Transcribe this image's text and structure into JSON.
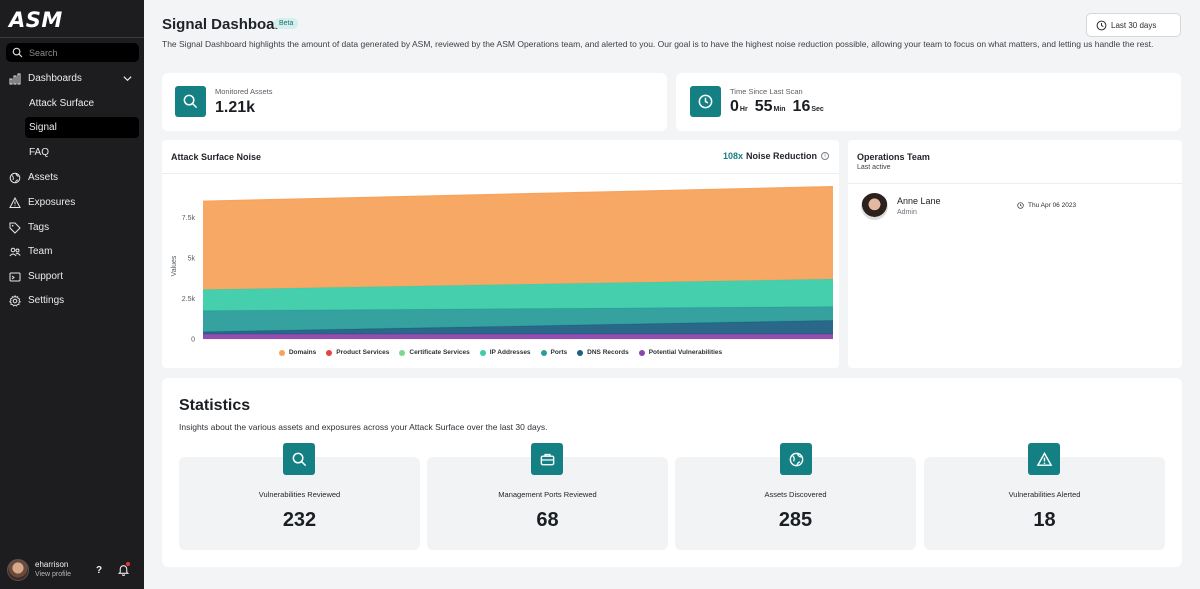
{
  "brand": {
    "logo_text": "ASM"
  },
  "sidebar": {
    "search_placeholder": "Search",
    "items": [
      {
        "label": "Dashboards",
        "icon": "bar-chart-icon"
      },
      {
        "label": "Assets",
        "icon": "globe-icon"
      },
      {
        "label": "Exposures",
        "icon": "warning-icon"
      },
      {
        "label": "Tags",
        "icon": "tag-icon"
      },
      {
        "label": "Team",
        "icon": "team-icon"
      },
      {
        "label": "Support",
        "icon": "support-icon"
      },
      {
        "label": "Settings",
        "icon": "gear-icon"
      }
    ],
    "subitems": [
      {
        "label": "Attack Surface",
        "active": false
      },
      {
        "label": "Signal",
        "active": true
      },
      {
        "label": "FAQ",
        "active": false
      }
    ],
    "profile": {
      "name": "eharrison",
      "link": "View profile"
    },
    "help_label": "?"
  },
  "header": {
    "title": "Signal Dashboard",
    "badge": "Beta",
    "description": "The Signal Dashboard highlights the amount of data generated by ASM, reviewed by the ASM Operations team, and alerted to you. Our goal is to have the highest noise reduction possible, allowing your team to focus on what matters, and letting us handle the rest.",
    "date_range": "Last 30 days"
  },
  "kpis": {
    "monitored_assets": {
      "label": "Monitored Assets",
      "value": "1.21k"
    },
    "last_scan": {
      "label": "Time Since Last Scan",
      "hours": "0",
      "hours_unit": "Hr",
      "minutes": "55",
      "minutes_unit": "Min",
      "seconds": "16",
      "seconds_unit": "Sec"
    }
  },
  "noise_chart": {
    "title": "Attack Surface Noise",
    "reduction_value": "108x",
    "reduction_label": "Noise Reduction"
  },
  "chart_data": {
    "type": "area",
    "stacked": true,
    "ylabel": "Values",
    "xlabel": "",
    "ylim": [
      0,
      9500
    ],
    "yticks": [
      "0",
      "2.5k",
      "5k",
      "7.5k"
    ],
    "ytick_values": [
      0,
      2500,
      5000,
      7500
    ],
    "grid": true,
    "legend_position": "bottom",
    "x": [
      0,
      1
    ],
    "series": [
      {
        "name": "Potential Vulnerabilities",
        "color": "#8e44ad",
        "values": [
          300,
          300
        ]
      },
      {
        "name": "DNS Records",
        "color": "#1f5f82",
        "values": [
          150,
          850
        ]
      },
      {
        "name": "Ports",
        "color": "#2a9d9a",
        "values": [
          1300,
          850
        ]
      },
      {
        "name": "IP Addresses",
        "color": "#3ccca8",
        "values": [
          1300,
          1700
        ]
      },
      {
        "name": "Certificate Services",
        "color": "#7bd88f",
        "values": [
          0,
          0
        ]
      },
      {
        "name": "Product Services",
        "color": "#e04343",
        "values": [
          0,
          0
        ]
      },
      {
        "name": "Domains",
        "color": "#f7a35c",
        "values": [
          5450,
          5700
        ]
      }
    ],
    "legend": [
      {
        "name": "Domains",
        "color": "#f7a35c"
      },
      {
        "name": "Product Services",
        "color": "#e04343"
      },
      {
        "name": "Certificate Services",
        "color": "#7bd88f"
      },
      {
        "name": "IP Addresses",
        "color": "#3ccca8"
      },
      {
        "name": "Ports",
        "color": "#2a9d9a"
      },
      {
        "name": "DNS Records",
        "color": "#1f5f82"
      },
      {
        "name": "Potential Vulnerabilities",
        "color": "#8e44ad"
      }
    ]
  },
  "operations": {
    "title": "Operations Team",
    "subtitle": "Last active",
    "member": {
      "name": "Anne Lane",
      "role": "Admin",
      "date": "Thu Apr 06 2023"
    }
  },
  "statistics": {
    "title": "Statistics",
    "description": "Insights about the various assets and exposures across your Attack Surface over the last 30 days.",
    "cards": [
      {
        "label": "Vulnerabilities Reviewed",
        "value": "232",
        "icon": "search-icon"
      },
      {
        "label": "Management Ports Reviewed",
        "value": "68",
        "icon": "briefcase-icon"
      },
      {
        "label": "Assets Discovered",
        "value": "285",
        "icon": "globe-icon"
      },
      {
        "label": "Vulnerabilities Alerted",
        "value": "18",
        "icon": "warning-icon"
      }
    ]
  },
  "colors": {
    "accent": "#148083",
    "sidebar_bg": "#1d1d1f",
    "page_bg": "#f3f4f6"
  }
}
